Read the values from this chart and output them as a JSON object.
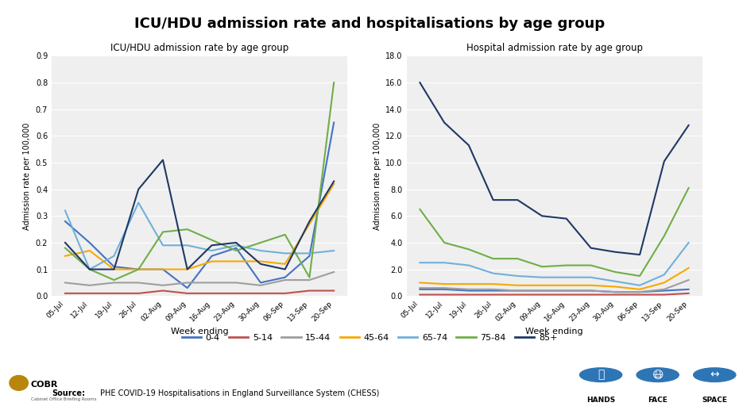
{
  "title": "ICU/HDU admission rate and hospitalisations by age group",
  "weeks": [
    "05-Jul",
    "12-Jul",
    "19-Jul",
    "26-Jul",
    "02-Aug",
    "09-Aug",
    "16-Aug",
    "23-Aug",
    "30-Aug",
    "06-Sep",
    "13-Sep",
    "20-Sep"
  ],
  "icu": {
    "title": "ICU/HDU admission rate by age group",
    "ylabel": "Admission rate per 100,000",
    "xlabel": "Week ending",
    "ylim": [
      0.0,
      0.9
    ],
    "yticks": [
      0.0,
      0.1,
      0.2,
      0.3,
      0.4,
      0.5,
      0.6,
      0.7,
      0.8,
      0.9
    ],
    "series": {
      "0-4": [
        0.28,
        0.2,
        0.11,
        0.1,
        0.1,
        0.03,
        0.15,
        0.18,
        0.05,
        0.07,
        0.15,
        0.65
      ],
      "5-14": [
        0.01,
        0.01,
        0.01,
        0.01,
        0.02,
        0.01,
        0.01,
        0.01,
        0.01,
        0.01,
        0.02,
        0.02
      ],
      "15-44": [
        0.05,
        0.04,
        0.05,
        0.05,
        0.04,
        0.05,
        0.05,
        0.05,
        0.04,
        0.06,
        0.06,
        0.09
      ],
      "45-64": [
        0.15,
        0.17,
        0.1,
        0.1,
        0.1,
        0.1,
        0.13,
        0.13,
        0.13,
        0.12,
        0.27,
        0.42
      ],
      "65-74": [
        0.32,
        0.1,
        0.15,
        0.35,
        0.19,
        0.19,
        0.17,
        0.19,
        0.17,
        0.16,
        0.16,
        0.17
      ],
      "75-84": [
        0.18,
        0.1,
        0.06,
        0.1,
        0.24,
        0.25,
        0.21,
        0.17,
        0.2,
        0.23,
        0.07,
        0.8
      ],
      "85+": [
        0.2,
        0.1,
        0.1,
        0.4,
        0.51,
        0.1,
        0.19,
        0.2,
        0.12,
        0.1,
        0.28,
        0.43
      ]
    }
  },
  "hosp": {
    "title": "Hospital admission rate by age group",
    "ylabel": "Admission rate per 100,000",
    "xlabel": "Week ending",
    "ylim": [
      0.0,
      18.0
    ],
    "yticks": [
      0.0,
      2.0,
      4.0,
      6.0,
      8.0,
      10.0,
      12.0,
      14.0,
      16.0,
      18.0
    ],
    "series": {
      "0-4": [
        0.5,
        0.5,
        0.4,
        0.4,
        0.4,
        0.4,
        0.4,
        0.4,
        0.3,
        0.3,
        0.4,
        0.5
      ],
      "5-14": [
        0.1,
        0.1,
        0.1,
        0.1,
        0.1,
        0.1,
        0.1,
        0.1,
        0.1,
        0.1,
        0.1,
        0.2
      ],
      "15-44": [
        0.6,
        0.6,
        0.5,
        0.5,
        0.4,
        0.4,
        0.4,
        0.4,
        0.3,
        0.3,
        0.5,
        1.2
      ],
      "45-64": [
        1.0,
        0.9,
        0.9,
        0.9,
        0.8,
        0.8,
        0.8,
        0.8,
        0.7,
        0.5,
        1.0,
        2.1
      ],
      "65-74": [
        2.5,
        2.5,
        2.3,
        1.7,
        1.5,
        1.4,
        1.4,
        1.4,
        1.1,
        0.8,
        1.6,
        4.0
      ],
      "75-84": [
        6.5,
        4.0,
        3.5,
        2.8,
        2.8,
        2.2,
        2.3,
        2.3,
        1.8,
        1.5,
        4.5,
        8.1
      ],
      "85+": [
        16.0,
        13.0,
        11.3,
        7.2,
        7.2,
        6.0,
        5.8,
        3.6,
        3.3,
        3.1,
        10.1,
        12.8
      ]
    }
  },
  "colors": {
    "0-4": "#4472C4",
    "5-14": "#C0504D",
    "15-44": "#9E9E9E",
    "45-64": "#F7A800",
    "65-74": "#70B0D8",
    "75-84": "#70AD47",
    "85+": "#1F3864"
  },
  "legend_labels": [
    "0-4",
    "5-14",
    "15-44",
    "45-64",
    "65-74",
    "75-84",
    "85+"
  ],
  "source_text": "PHE COVID-19 Hospitalisations in England Surveillance System (CHESS)",
  "source_bold": "Source:",
  "bg_color": "#EFEFEF",
  "fig_bg": "#FFFFFF"
}
